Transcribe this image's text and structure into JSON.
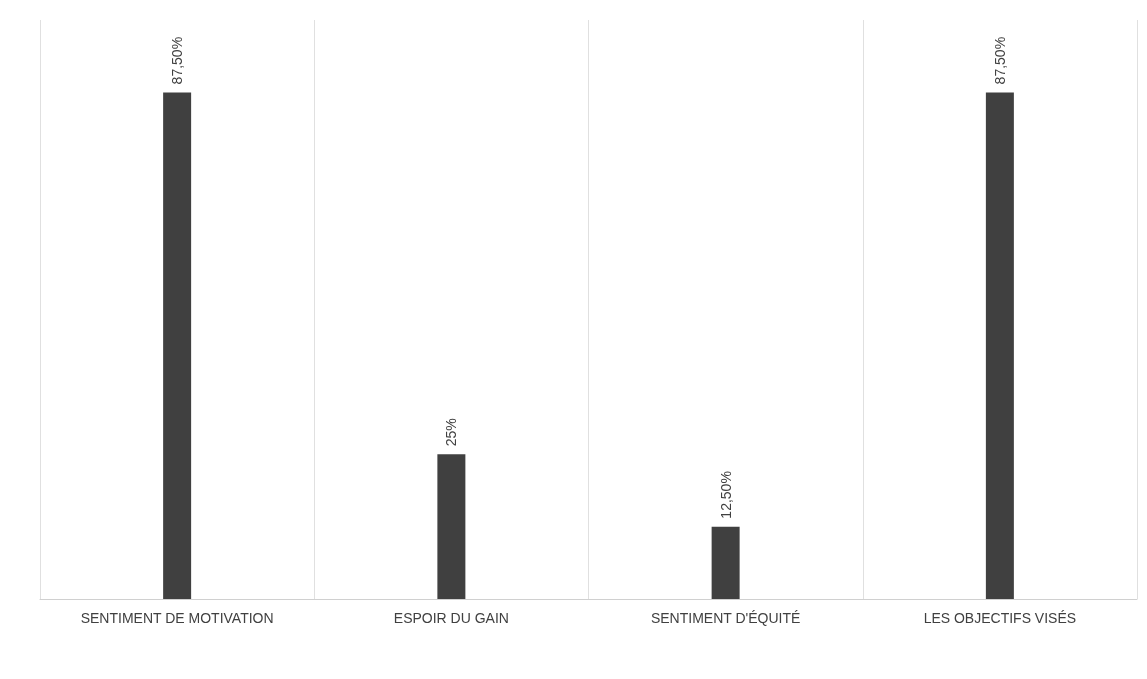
{
  "chart_data": {
    "type": "bar",
    "categories": [
      "SENTIMENT DE MOTIVATION",
      "ESPOIR DU GAIN",
      "SENTIMENT D'ÉQUITÉ",
      "LES OBJECTIFS VISÉS"
    ],
    "values": [
      87.5,
      25,
      12.5,
      87.5
    ],
    "value_labels": [
      "87,50%",
      "25%",
      "12,50%",
      "87,50%"
    ],
    "color": "#404040",
    "grid": "x"
  }
}
